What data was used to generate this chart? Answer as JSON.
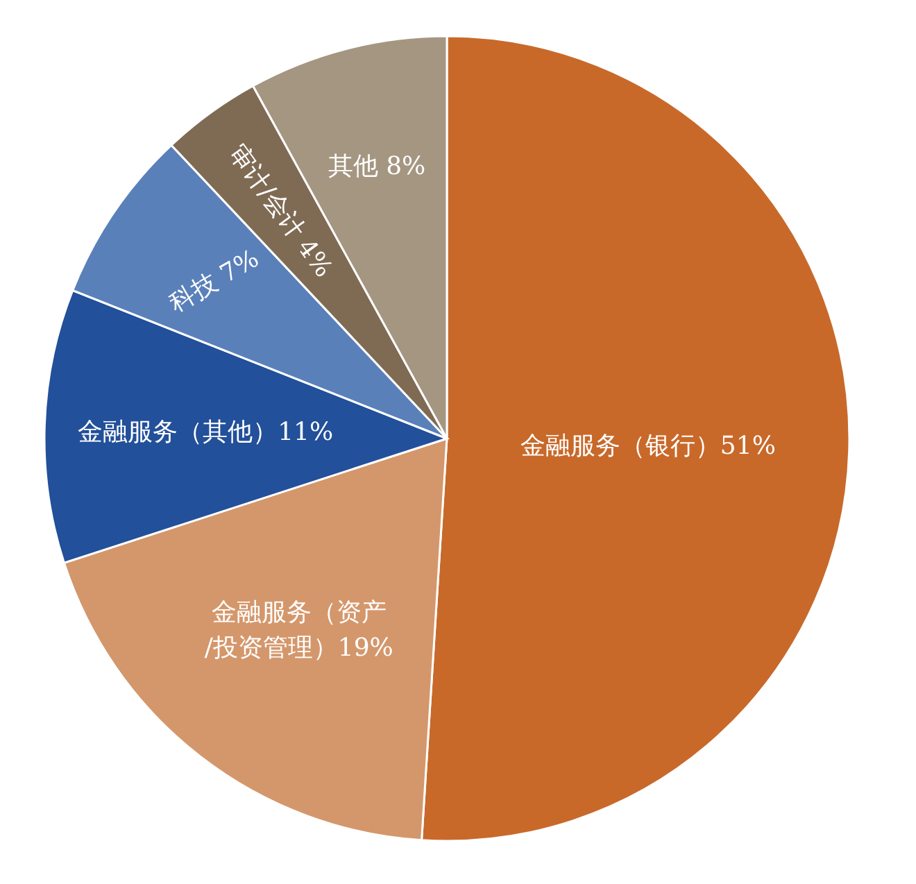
{
  "chart_data": {
    "type": "pie",
    "categories": [
      "金融服务（银行）",
      "金融服务（资产/投资管理）",
      "金融服务（其他）",
      "科技",
      "审计/会计",
      "其他"
    ],
    "values": [
      51,
      19,
      11,
      7,
      4,
      8
    ],
    "value_labels": [
      "51%",
      "19%",
      "11%",
      "7%",
      "4%",
      "8%"
    ],
    "colors": [
      "#c8692a",
      "#d4976b",
      "#22509a",
      "#5a80ba",
      "#7f6b54",
      "#a59682"
    ]
  }
}
